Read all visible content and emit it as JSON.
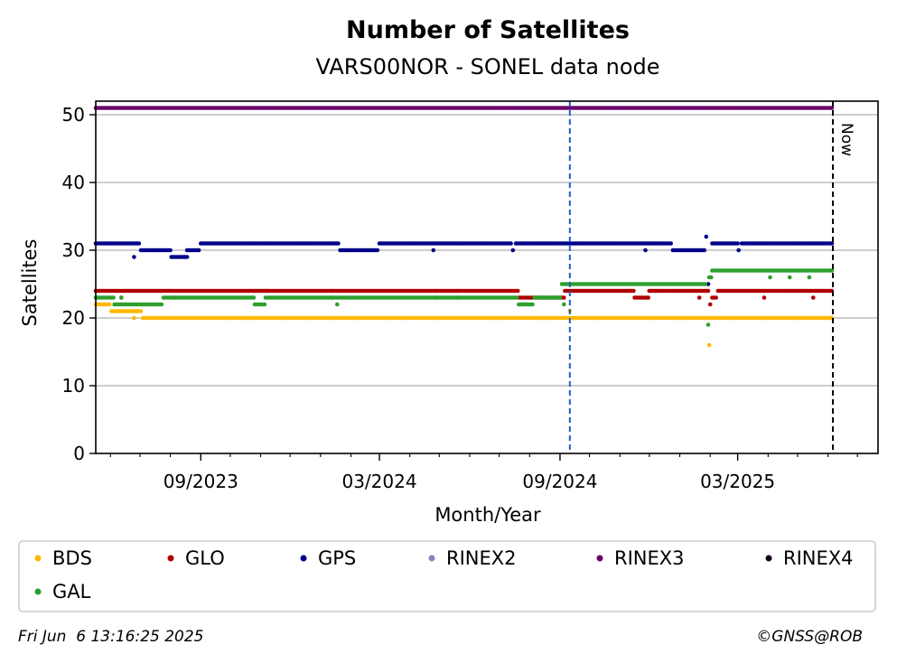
{
  "chart_data": {
    "type": "scatter",
    "title": "Number of Satellites",
    "subtitle": "VARS00NOR - SONEL data node",
    "xlabel": "Month/Year",
    "ylabel": "Satellites",
    "ylim": [
      0,
      52
    ],
    "yticks": [
      0,
      10,
      20,
      30,
      40,
      50
    ],
    "grid": "horizontal",
    "x_range": [
      "2023-05-17",
      "2025-07-22"
    ],
    "xticks": [
      {
        "date": "2023-09-01",
        "label": "09/2023"
      },
      {
        "date": "2024-03-01",
        "label": "03/2024"
      },
      {
        "date": "2024-09-01",
        "label": "09/2024"
      },
      {
        "date": "2025-03-01",
        "label": "03/2025"
      }
    ],
    "reference_lines": [
      {
        "date": "2024-09-11",
        "style": "dashed",
        "color": "#1f5fbf"
      },
      {
        "date": "2025-06-06",
        "style": "dashed",
        "color": "#000000",
        "label": "Now"
      }
    ],
    "series": [
      {
        "name": "BDS",
        "color": "#ffb800",
        "segments": [
          {
            "start": "2023-05-17",
            "end": "2023-06-01",
            "value": 22
          },
          {
            "start": "2023-06-02",
            "end": "2023-07-03",
            "value": 21
          },
          {
            "start": "2023-07-04",
            "end": "2024-08-20",
            "value": 20
          },
          {
            "start": "2024-08-21",
            "end": "2025-06-06",
            "value": 20
          }
        ],
        "points": [
          {
            "date": "2023-06-25",
            "value": 20
          },
          {
            "date": "2024-09-11",
            "value": 21
          },
          {
            "date": "2025-01-31",
            "value": 16
          }
        ]
      },
      {
        "name": "GLO",
        "color": "#b00000",
        "segments": [
          {
            "start": "2023-05-17",
            "end": "2024-07-20",
            "value": 24
          },
          {
            "start": "2024-07-21",
            "end": "2024-09-05",
            "value": 23
          },
          {
            "start": "2024-09-06",
            "end": "2024-11-15",
            "value": 24
          },
          {
            "start": "2024-11-16",
            "end": "2024-11-30",
            "value": 23
          },
          {
            "start": "2024-12-01",
            "end": "2025-01-31",
            "value": 24
          },
          {
            "start": "2025-02-03",
            "end": "2025-02-08",
            "value": 23
          },
          {
            "start": "2025-02-09",
            "end": "2025-06-06",
            "value": 24
          }
        ],
        "points": [
          {
            "date": "2023-06-12",
            "value": 23
          },
          {
            "date": "2023-08-05",
            "value": 23
          },
          {
            "date": "2024-01-12",
            "value": 23
          },
          {
            "date": "2024-04-28",
            "value": 23
          },
          {
            "date": "2024-05-20",
            "value": 23
          },
          {
            "date": "2025-01-21",
            "value": 23
          },
          {
            "date": "2025-02-01",
            "value": 22
          },
          {
            "date": "2025-03-28",
            "value": 23
          },
          {
            "date": "2025-05-17",
            "value": 23
          }
        ]
      },
      {
        "name": "GPS",
        "color": "#00008b",
        "segments": [
          {
            "start": "2023-05-17",
            "end": "2023-06-30",
            "value": 31
          },
          {
            "start": "2023-07-02",
            "end": "2023-08-01",
            "value": 30
          },
          {
            "start": "2023-08-02",
            "end": "2023-08-18",
            "value": 29
          },
          {
            "start": "2023-08-18",
            "end": "2023-08-31",
            "value": 30
          },
          {
            "start": "2023-09-01",
            "end": "2024-01-20",
            "value": 31
          },
          {
            "start": "2024-01-21",
            "end": "2024-02-28",
            "value": 30
          },
          {
            "start": "2024-03-01",
            "end": "2024-07-14",
            "value": 31
          },
          {
            "start": "2024-07-18",
            "end": "2024-12-24",
            "value": 31
          },
          {
            "start": "2024-12-25",
            "end": "2025-01-27",
            "value": 30
          },
          {
            "start": "2025-02-03",
            "end": "2025-03-01",
            "value": 31
          },
          {
            "start": "2025-03-05",
            "end": "2025-06-06",
            "value": 31
          }
        ],
        "points": [
          {
            "date": "2023-06-25",
            "value": 29
          },
          {
            "date": "2023-08-15",
            "value": 29
          },
          {
            "date": "2024-04-25",
            "value": 30
          },
          {
            "date": "2024-07-15",
            "value": 30
          },
          {
            "date": "2024-11-27",
            "value": 30
          },
          {
            "date": "2025-01-28",
            "value": 32
          },
          {
            "date": "2025-01-30",
            "value": 25
          },
          {
            "date": "2025-03-02",
            "value": 30
          }
        ]
      },
      {
        "name": "RINEX2",
        "color": "#8c7fc0",
        "segments": [],
        "points": []
      },
      {
        "name": "RINEX3",
        "color": "#6a006a",
        "segments": [
          {
            "start": "2023-05-17",
            "end": "2025-06-06",
            "value": 51
          }
        ],
        "points": []
      },
      {
        "name": "RINEX4",
        "color": "#1a0020",
        "segments": [],
        "points": []
      },
      {
        "name": "GAL",
        "color": "#2ca02c",
        "segments": [
          {
            "start": "2023-05-17",
            "end": "2023-06-04",
            "value": 23
          },
          {
            "start": "2023-06-05",
            "end": "2023-07-24",
            "value": 22
          },
          {
            "start": "2023-07-25",
            "end": "2023-10-25",
            "value": 23
          },
          {
            "start": "2023-10-26",
            "end": "2023-11-05",
            "value": 22
          },
          {
            "start": "2023-11-06",
            "end": "2024-07-20",
            "value": 23
          },
          {
            "start": "2024-07-21",
            "end": "2024-08-05",
            "value": 22
          },
          {
            "start": "2024-08-06",
            "end": "2024-09-02",
            "value": 23
          },
          {
            "start": "2024-09-03",
            "end": "2025-01-28",
            "value": 25
          },
          {
            "start": "2025-02-03",
            "end": "2025-06-06",
            "value": 27
          }
        ],
        "points": [
          {
            "date": "2023-06-12",
            "value": 23
          },
          {
            "date": "2024-01-18",
            "value": 22
          },
          {
            "date": "2024-09-05",
            "value": 22
          },
          {
            "date": "2025-01-30",
            "value": 19
          },
          {
            "date": "2025-01-31",
            "value": 26
          },
          {
            "date": "2025-02-02",
            "value": 26
          },
          {
            "date": "2025-04-03",
            "value": 26
          },
          {
            "date": "2025-04-23",
            "value": 26
          },
          {
            "date": "2025-05-13",
            "value": 26
          }
        ]
      }
    ]
  },
  "footer": {
    "timestamp": "Fri Jun  6 13:16:25 2025",
    "copyright": "©GNSS@ROB"
  }
}
